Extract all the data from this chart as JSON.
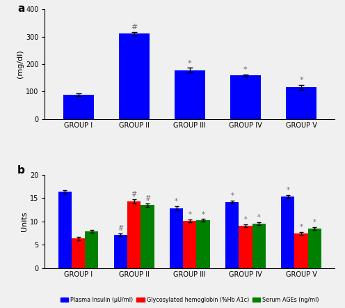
{
  "panel_a": {
    "groups": [
      "GROUP I",
      "GROUP II",
      "GROUP III",
      "GROUP IV",
      "GROUP V"
    ],
    "values": [
      88,
      311,
      178,
      158,
      115
    ],
    "errors": [
      4,
      6,
      8,
      5,
      8
    ],
    "bar_color": "#0000ff",
    "ylabel": "(mg/dl)",
    "ylim": [
      0,
      400
    ],
    "yticks": [
      0,
      100,
      200,
      300,
      400
    ],
    "label": "a",
    "annotations": [
      "",
      "#",
      "*",
      "*",
      "*"
    ]
  },
  "panel_b": {
    "groups": [
      "GROUP I",
      "GROUP II",
      "GROUP III",
      "GROUP IV",
      "GROUP V"
    ],
    "blue_values": [
      16.3,
      7.1,
      12.8,
      14.2,
      15.4
    ],
    "red_values": [
      6.3,
      14.3,
      10.1,
      9.1,
      7.4
    ],
    "green_values": [
      7.8,
      13.5,
      10.2,
      9.5,
      8.5
    ],
    "blue_errors": [
      0.3,
      0.3,
      0.5,
      0.3,
      0.3
    ],
    "red_errors": [
      0.4,
      0.5,
      0.3,
      0.3,
      0.3
    ],
    "green_errors": [
      0.3,
      0.4,
      0.3,
      0.3,
      0.3
    ],
    "blue_color": "#0000ff",
    "red_color": "#ff0000",
    "green_color": "#008000",
    "ylabel": "Units",
    "ylim": [
      0,
      20
    ],
    "yticks": [
      0,
      5,
      10,
      15,
      20
    ],
    "label": "b",
    "blue_annot": [
      "",
      "#",
      "*",
      "*",
      "*"
    ],
    "red_annot": [
      "",
      "#",
      "*",
      "*",
      "*"
    ],
    "green_annot": [
      "",
      "#",
      "*",
      "*",
      "*"
    ],
    "legend_labels": [
      "Plasma Insulin (μU/ml)",
      "Glycosylated hemoglobin (%Hb A1c)",
      "Serum AGEs (ng/ml)"
    ]
  },
  "fig_bg": "#f0f0f0"
}
